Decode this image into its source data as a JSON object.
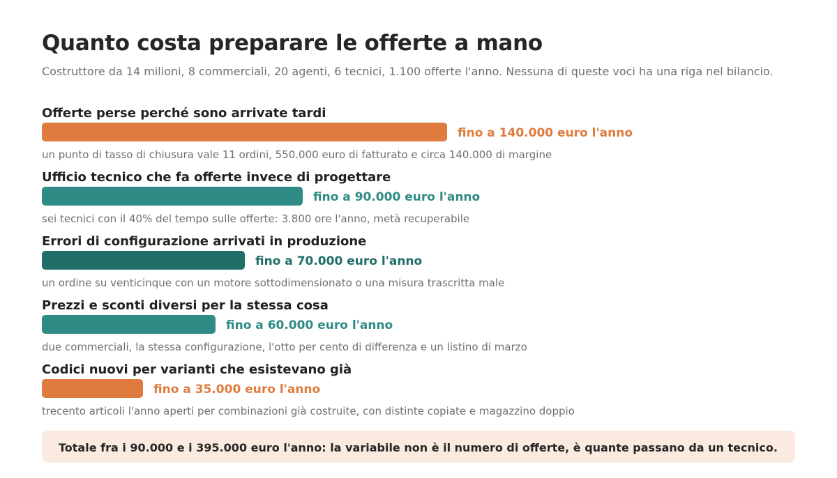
{
  "header": {
    "title": "Quanto costa preparare le offerte a mano",
    "subtitle": "Costruttore da 14 milioni, 8 commerciali, 20 agenti, 6 tecnici, 1.100 offerte l'anno. Nessuna di queste voci ha una riga nel bilancio."
  },
  "chart_data": {
    "type": "bar",
    "orientation": "horizontal",
    "unit": "euro l'anno",
    "grid": false,
    "legend": "none",
    "categories": [
      "Offerte perse perché sono arrivate tardi",
      "Ufficio tecnico che fa offerte invece di progettare",
      "Errori di configurazione arrivati in produzione",
      "Prezzi e sconti diversi per la stessa cosa",
      "Codici nuovi per varianti che esistevano già"
    ],
    "values": [
      140000,
      90000,
      70000,
      60000,
      35000
    ],
    "value_labels": [
      "fino a 140.000 euro l'anno",
      "fino a 90.000 euro l'anno",
      "fino a 70.000 euro l'anno",
      "fino a 60.000 euro l'anno",
      "fino a 35.000 euro l'anno"
    ],
    "notes": [
      "un punto di tasso di chiusura vale 11 ordini, 550.000 euro di fatturato e circa 140.000 di margine",
      "sei tecnici con il 40% del tempo sulle offerte: 3.800 ore l'anno, metà recuperabile",
      "un ordine su venticinque con un motore sottodimensionato o una misura trascritta male",
      "due commerciali, la stessa configurazione, l'otto per cento di differenza e un listino di marzo",
      "trecento articoli l'anno aperti per combinazioni già costruite, con distinte copiate e magazzino doppio"
    ],
    "colors": [
      "#e07b3f",
      "#2e8b85",
      "#1f6e68",
      "#2e8b85",
      "#e07b3f"
    ],
    "xlim": [
      0,
      140000
    ]
  },
  "footer": {
    "total": "Totale fra i 90.000 e i 395.000 euro l'anno: la variabile non è il numero di offerte, è quante passano da un tecnico."
  }
}
